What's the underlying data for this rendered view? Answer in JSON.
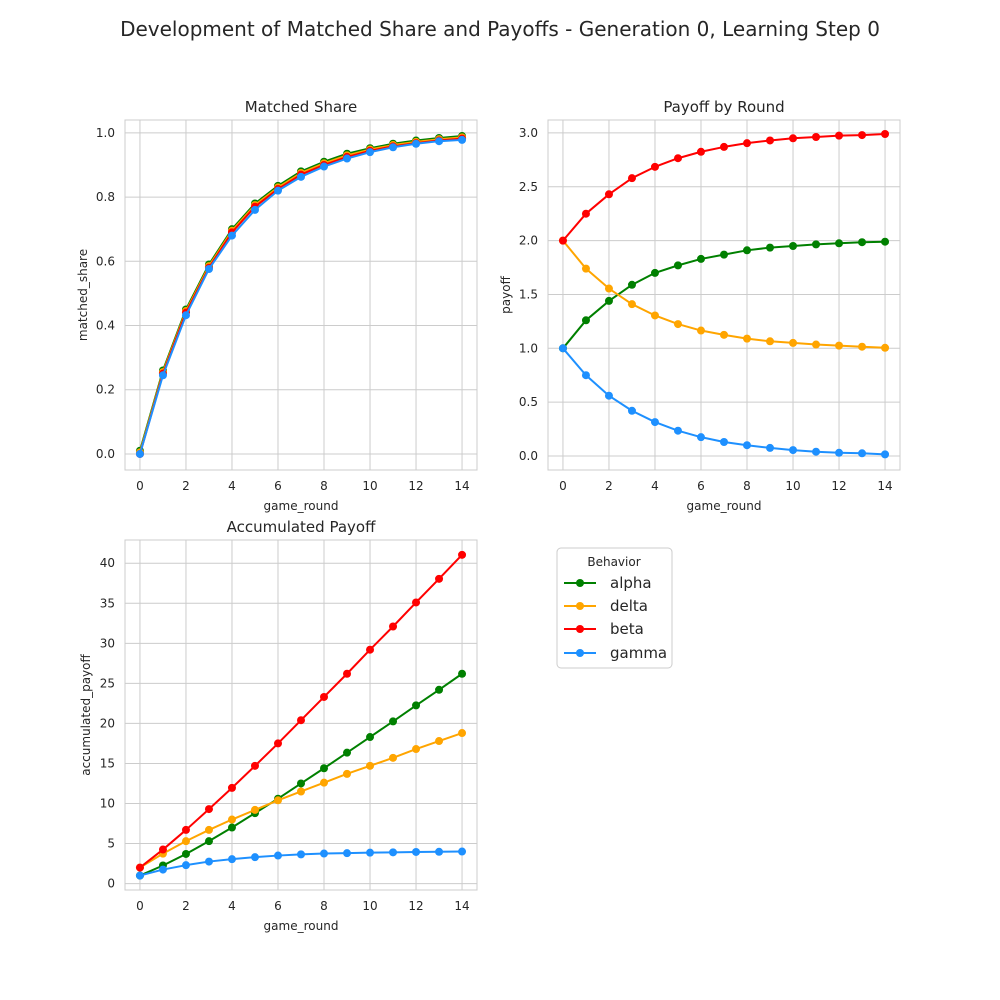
{
  "figure_title": "Development of Matched Share and Payoffs - Generation 0, Learning Step 0",
  "legend": {
    "title": "Behavior",
    "entries": [
      {
        "label": "alpha",
        "color": "#008000"
      },
      {
        "label": "delta",
        "color": "#FFA500"
      },
      {
        "label": "beta",
        "color": "#FF0000"
      },
      {
        "label": "gamma",
        "color": "#1E90FF"
      }
    ]
  },
  "chart_data": [
    {
      "type": "line",
      "title": "Matched Share",
      "xlabel": "game_round",
      "ylabel": "matched_share",
      "xlim": [
        -0.65,
        14.65
      ],
      "ylim": [
        -0.05,
        1.04
      ],
      "xticks": [
        0,
        2,
        4,
        6,
        8,
        10,
        12,
        14
      ],
      "yticks": [
        0.0,
        0.2,
        0.4,
        0.6,
        0.8,
        1.0
      ],
      "ytick_labels": [
        "0.0",
        "0.2",
        "0.4",
        "0.6",
        "0.8",
        "1.0"
      ],
      "grid": true,
      "x": [
        0,
        1,
        2,
        3,
        4,
        5,
        6,
        7,
        8,
        9,
        10,
        11,
        12,
        13,
        14
      ],
      "series": [
        {
          "name": "alpha",
          "color": "#008000",
          "values": [
            0.01,
            0.26,
            0.45,
            0.59,
            0.7,
            0.78,
            0.835,
            0.88,
            0.91,
            0.935,
            0.952,
            0.966,
            0.976,
            0.984,
            0.99
          ]
        },
        {
          "name": "delta",
          "color": "#FFA500",
          "values": [
            0.005,
            0.255,
            0.445,
            0.585,
            0.695,
            0.775,
            0.83,
            0.875,
            0.905,
            0.93,
            0.948,
            0.962,
            0.972,
            0.98,
            0.986
          ]
        },
        {
          "name": "beta",
          "color": "#FF0000",
          "values": [
            0.0,
            0.25,
            0.44,
            0.58,
            0.69,
            0.77,
            0.825,
            0.87,
            0.9,
            0.925,
            0.944,
            0.958,
            0.968,
            0.976,
            0.982
          ]
        },
        {
          "name": "gamma",
          "color": "#1E90FF",
          "values": [
            0.0,
            0.245,
            0.432,
            0.576,
            0.68,
            0.76,
            0.82,
            0.863,
            0.895,
            0.92,
            0.94,
            0.955,
            0.966,
            0.974,
            0.978
          ]
        }
      ]
    },
    {
      "type": "line",
      "title": "Payoff by Round",
      "xlabel": "game_round",
      "ylabel": "payoff",
      "xlim": [
        -0.65,
        14.65
      ],
      "ylim": [
        -0.13,
        3.12
      ],
      "xticks": [
        0,
        2,
        4,
        6,
        8,
        10,
        12,
        14
      ],
      "yticks": [
        0.0,
        0.5,
        1.0,
        1.5,
        2.0,
        2.5,
        3.0
      ],
      "ytick_labels": [
        "0.0",
        "0.5",
        "1.0",
        "1.5",
        "2.0",
        "2.5",
        "3.0"
      ],
      "grid": true,
      "x": [
        0,
        1,
        2,
        3,
        4,
        5,
        6,
        7,
        8,
        9,
        10,
        11,
        12,
        13,
        14
      ],
      "series": [
        {
          "name": "alpha",
          "color": "#008000",
          "values": [
            1.0,
            1.26,
            1.44,
            1.59,
            1.7,
            1.77,
            1.83,
            1.87,
            1.91,
            1.935,
            1.95,
            1.965,
            1.975,
            1.985,
            1.99
          ]
        },
        {
          "name": "delta",
          "color": "#FFA500",
          "values": [
            2.0,
            1.74,
            1.555,
            1.41,
            1.305,
            1.225,
            1.165,
            1.125,
            1.09,
            1.065,
            1.05,
            1.035,
            1.025,
            1.015,
            1.005
          ]
        },
        {
          "name": "beta",
          "color": "#FF0000",
          "values": [
            2.0,
            2.25,
            2.43,
            2.58,
            2.685,
            2.765,
            2.825,
            2.87,
            2.905,
            2.93,
            2.95,
            2.962,
            2.975,
            2.98,
            2.99
          ]
        },
        {
          "name": "gamma",
          "color": "#1E90FF",
          "values": [
            1.0,
            0.75,
            0.56,
            0.42,
            0.315,
            0.235,
            0.175,
            0.13,
            0.1,
            0.075,
            0.055,
            0.04,
            0.03,
            0.025,
            0.015
          ]
        }
      ]
    },
    {
      "type": "line",
      "title": "Accumulated Payoff",
      "xlabel": "game_round",
      "ylabel": "accumulated_payoff",
      "xlim": [
        -0.65,
        14.65
      ],
      "ylim": [
        -0.8,
        42.9
      ],
      "xticks": [
        0,
        2,
        4,
        6,
        8,
        10,
        12,
        14
      ],
      "yticks": [
        0,
        5,
        10,
        15,
        20,
        25,
        30,
        35,
        40
      ],
      "ytick_labels": [
        "0",
        "5",
        "10",
        "15",
        "20",
        "25",
        "30",
        "35",
        "40"
      ],
      "grid": true,
      "x": [
        0,
        1,
        2,
        3,
        4,
        5,
        6,
        7,
        8,
        9,
        10,
        11,
        12,
        13,
        14
      ],
      "series": [
        {
          "name": "alpha",
          "color": "#008000",
          "values": [
            1.0,
            2.26,
            3.7,
            5.3,
            7.0,
            8.8,
            10.6,
            12.5,
            14.4,
            16.35,
            18.3,
            20.25,
            22.25,
            24.2,
            26.2
          ]
        },
        {
          "name": "delta",
          "color": "#FFA500",
          "values": [
            2.0,
            3.74,
            5.3,
            6.7,
            8.0,
            9.2,
            10.4,
            11.5,
            12.6,
            13.7,
            14.7,
            15.7,
            16.8,
            17.8,
            18.8
          ]
        },
        {
          "name": "beta",
          "color": "#FF0000",
          "values": [
            2.0,
            4.25,
            6.7,
            9.3,
            11.95,
            14.7,
            17.5,
            20.4,
            23.3,
            26.2,
            29.2,
            32.1,
            35.1,
            38.05,
            41.05
          ]
        },
        {
          "name": "gamma",
          "color": "#1E90FF",
          "values": [
            1.0,
            1.75,
            2.3,
            2.75,
            3.05,
            3.3,
            3.5,
            3.65,
            3.75,
            3.8,
            3.86,
            3.9,
            3.95,
            3.97,
            4.0
          ]
        }
      ]
    }
  ]
}
